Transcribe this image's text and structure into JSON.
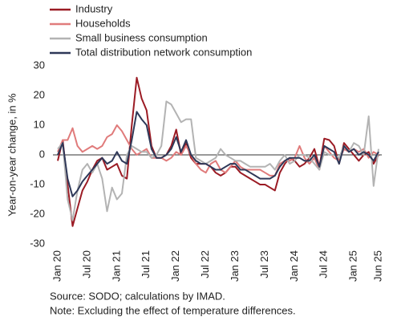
{
  "chart_data": {
    "type": "line",
    "ylabel": "Year-on-year change, in %",
    "source": "Source: SODO; calculations by IMAD.",
    "note": "Note: Excluding the effect of temperature differences.",
    "categories": [
      "Jan 20",
      null,
      null,
      null,
      null,
      null,
      "Jul 20",
      null,
      null,
      null,
      null,
      null,
      "Jan 21",
      null,
      null,
      null,
      null,
      null,
      "Jul 21",
      null,
      null,
      null,
      null,
      null,
      "Jan 22",
      null,
      null,
      null,
      null,
      null,
      "Jul 22",
      null,
      null,
      null,
      null,
      null,
      "Jan 23",
      null,
      null,
      null,
      null,
      null,
      "Jul 23",
      null,
      null,
      null,
      null,
      null,
      "Jan 24",
      null,
      null,
      null,
      null,
      null,
      "Jul 24",
      null,
      null,
      null,
      null,
      null,
      "Jan 25",
      null,
      null,
      null,
      null,
      "Jun 25"
    ],
    "ylim": [
      -30,
      30
    ],
    "yticks": [
      -30,
      -20,
      -10,
      0,
      10,
      20,
      30
    ],
    "legend": "top-left",
    "series": [
      {
        "name": "Industry",
        "color": "#9b1b24",
        "values": [
          -2,
          5,
          -10,
          -24,
          -18,
          -12,
          -9,
          -5,
          -2,
          -1,
          -5,
          -4,
          -3,
          -7,
          -8,
          10,
          26,
          19,
          15,
          3,
          -1,
          -1,
          0,
          3,
          8.5,
          0,
          4,
          -1,
          -3,
          -3,
          -3,
          -4,
          -6,
          -7,
          -6,
          -4,
          -4,
          -6,
          -7,
          -8,
          -9,
          -10,
          -10,
          -11,
          -12,
          -6,
          -3,
          -1,
          -2,
          -4,
          -3,
          -1,
          2,
          -4,
          5.5,
          5,
          3,
          -3,
          4,
          2,
          0,
          -2,
          0,
          1,
          -3,
          0
        ]
      },
      {
        "name": "Households",
        "color": "#e07b7b",
        "values": [
          1,
          5,
          5,
          9,
          3,
          1,
          2,
          3,
          2,
          3,
          6,
          7,
          10,
          8,
          5,
          2,
          0,
          1,
          2,
          -1,
          -1,
          -1,
          -2,
          -1,
          1,
          0,
          3,
          0,
          -3,
          -5,
          -6,
          -3,
          -2,
          -5,
          -6,
          -4,
          -2,
          -4,
          -5,
          -5,
          -5,
          -5,
          -6,
          -7,
          -7,
          -3,
          -2,
          -2,
          -1,
          3,
          -1,
          -3,
          -1,
          -5,
          3,
          1,
          -1,
          -2,
          2,
          1,
          2,
          1,
          2,
          -1,
          1,
          0
        ]
      },
      {
        "name": "Small business consumption",
        "color": "#b3b3b3",
        "values": [
          2,
          4,
          -15,
          -22,
          -12,
          -5,
          -3,
          -6,
          -3,
          -8,
          -19,
          -11,
          -15,
          -13,
          0,
          3,
          2,
          1,
          1,
          -1,
          0,
          3,
          18,
          17,
          14,
          11,
          12,
          12,
          -1,
          -2,
          -3,
          -2,
          -1,
          2,
          0,
          -1,
          -2,
          -2,
          -3,
          -4,
          -4,
          -4,
          -4,
          -3,
          -5,
          -2,
          0,
          -3,
          -2,
          0,
          0,
          -1,
          -3,
          -5,
          1,
          0,
          0,
          -1,
          3,
          1,
          4,
          3,
          0,
          13,
          -10.5,
          2
        ]
      },
      {
        "name": "Total distribution network consumption",
        "color": "#2e3858",
        "values": [
          0,
          4,
          -8,
          -14,
          -12,
          -9,
          -7,
          -5,
          -3,
          -1,
          -3,
          -2,
          1,
          -2,
          -3,
          5,
          14.5,
          12,
          10,
          2,
          -1,
          -1,
          0,
          2,
          6,
          1,
          5,
          0,
          -2,
          -3,
          -3,
          -4,
          -5,
          -5,
          -4,
          -3,
          -3,
          -5,
          -5,
          -6,
          -7,
          -8,
          -8,
          -8,
          -7,
          -4,
          -2,
          -1,
          -1,
          -1,
          -2,
          -2,
          0,
          -4,
          3,
          2,
          1,
          -3,
          3,
          1,
          2,
          0,
          1,
          0,
          -2,
          1
        ]
      }
    ]
  }
}
